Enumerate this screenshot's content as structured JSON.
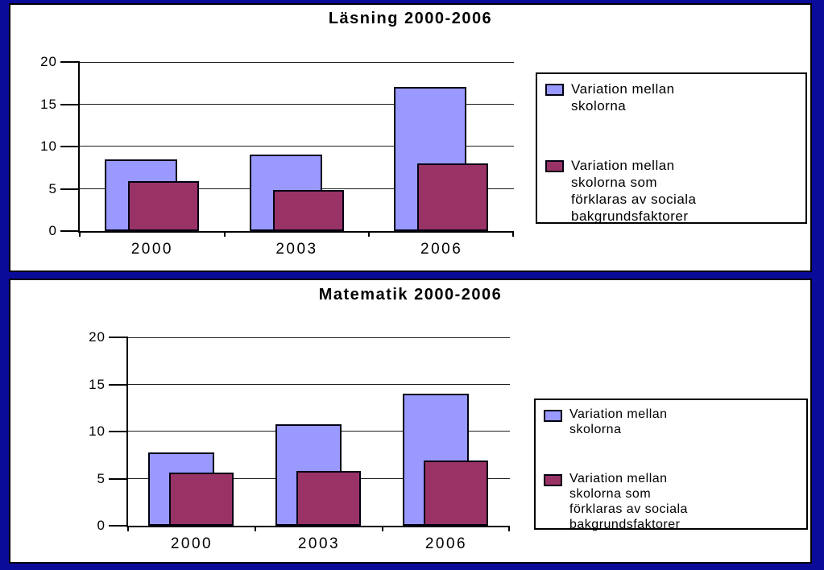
{
  "page": {
    "background_color": "#0B0B99",
    "panel_background": "#FFFFFF"
  },
  "colors": {
    "series_between_schools": "#9999FF",
    "series_social_background": "#993366",
    "bar_border": "#000014",
    "axis": "#000000"
  },
  "chart_data": [
    {
      "type": "bar",
      "title": "Läsning 2000-2006",
      "categories": [
        "2000",
        "2003",
        "2006"
      ],
      "series": [
        {
          "name": "Variation mellan skolorna",
          "color": "#9999FF",
          "values": [
            8.5,
            9,
            17
          ]
        },
        {
          "name": "Variation mellan skolorna som förklaras av sociala bakgrundsfaktorer",
          "color": "#993366",
          "values": [
            5.9,
            4.9,
            8
          ]
        }
      ],
      "ylim": [
        0,
        20
      ],
      "y_ticks": [
        0,
        5,
        10,
        15,
        20
      ],
      "grid": true,
      "legend_position": "right",
      "legend": {
        "entries": [
          {
            "lines": [
              "Variation mellan",
              "skolorna"
            ]
          },
          {
            "lines": [
              "Variation mellan",
              "skolorna som",
              "förklaras av sociala",
              "bakgrundsfaktorer"
            ]
          }
        ]
      }
    },
    {
      "type": "bar",
      "title": "Matematik 2000-2006",
      "categories": [
        "2000",
        "2003",
        "2006"
      ],
      "series": [
        {
          "name": "Variation mellan skolorna",
          "color": "#9999FF",
          "values": [
            7.8,
            10.8,
            14
          ]
        },
        {
          "name": "Variation mellan skolorna som förklaras av sociala bakgrundsfaktorer",
          "color": "#993366",
          "values": [
            5.6,
            5.8,
            6.9
          ]
        }
      ],
      "ylim": [
        0,
        20
      ],
      "y_ticks": [
        0,
        5,
        10,
        15,
        20
      ],
      "grid": true,
      "legend_position": "right",
      "legend": {
        "entries": [
          {
            "lines": [
              "Variation mellan",
              "skolorna"
            ]
          },
          {
            "lines": [
              "Variation mellan",
              "skolorna som",
              "förklaras av sociala",
              "bakgrundsfaktorer"
            ]
          }
        ]
      }
    }
  ]
}
